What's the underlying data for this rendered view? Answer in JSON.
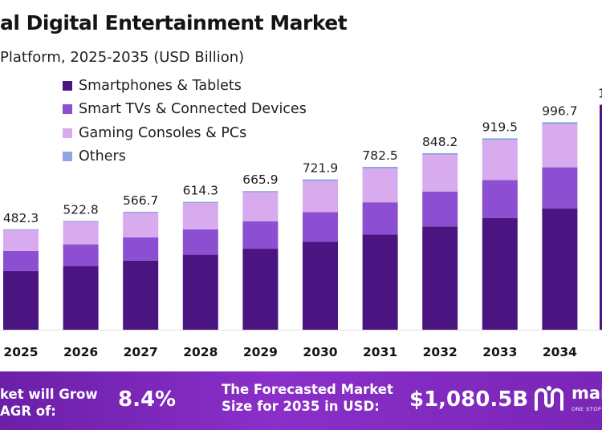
{
  "chart_data": {
    "type": "bar",
    "stacked": true,
    "title": "al Digital Entertainment Market",
    "subtitle": "Platform, 2025-2035 (USD Billion)",
    "categories": [
      "2025",
      "2026",
      "2027",
      "2028",
      "2029",
      "2030",
      "2031",
      "2032",
      "2033",
      "2034"
    ],
    "totals": [
      "482.3",
      "522.8",
      "566.7",
      "614.3",
      "665.9",
      "721.9",
      "782.5",
      "848.2",
      "919.5",
      "996.7"
    ],
    "series": [
      {
        "name": "Smartphones & Tablets",
        "color": "#4a1580",
        "values": [
          282.0,
          306.0,
          332.0,
          360.0,
          389.0,
          422.0,
          457.0,
          496.0,
          537.0,
          582.0
        ]
      },
      {
        "name": "Smart TVs & Connected Devices",
        "color": "#8c4fd1",
        "values": [
          96.0,
          104.0,
          112.0,
          122.0,
          132.0,
          143.0,
          155.0,
          168.0,
          182.0,
          198.0
        ]
      },
      {
        "name": "Gaming Consoles & PCs",
        "color": "#d8abee",
        "values": [
          99.3,
          107.8,
          117.2,
          126.8,
          138.4,
          149.9,
          162.5,
          176.2,
          191.5,
          207.2
        ]
      },
      {
        "name": "Others",
        "color": "#8ea5e0",
        "values": [
          5.0,
          5.0,
          5.5,
          5.5,
          6.5,
          7.0,
          8.0,
          8.0,
          9.0,
          9.5
        ]
      }
    ],
    "partial_next_label": "1",
    "ylim": [
      0,
      1100
    ],
    "legend_position": "top-left",
    "grid": false
  },
  "footer": {
    "cagr_text_line1": "ket will Grow",
    "cagr_text_line2": "AGR of:",
    "cagr_value": "8.4%",
    "forecast_text_line1": "The Forecasted Market",
    "forecast_text_line2": "Size for 2035 in USD:",
    "forecast_value": "$1,080.5B",
    "brand_name": "mar",
    "brand_tagline": "ONE STOP S",
    "brand_icon": "brand-wave-logo-icon"
  }
}
